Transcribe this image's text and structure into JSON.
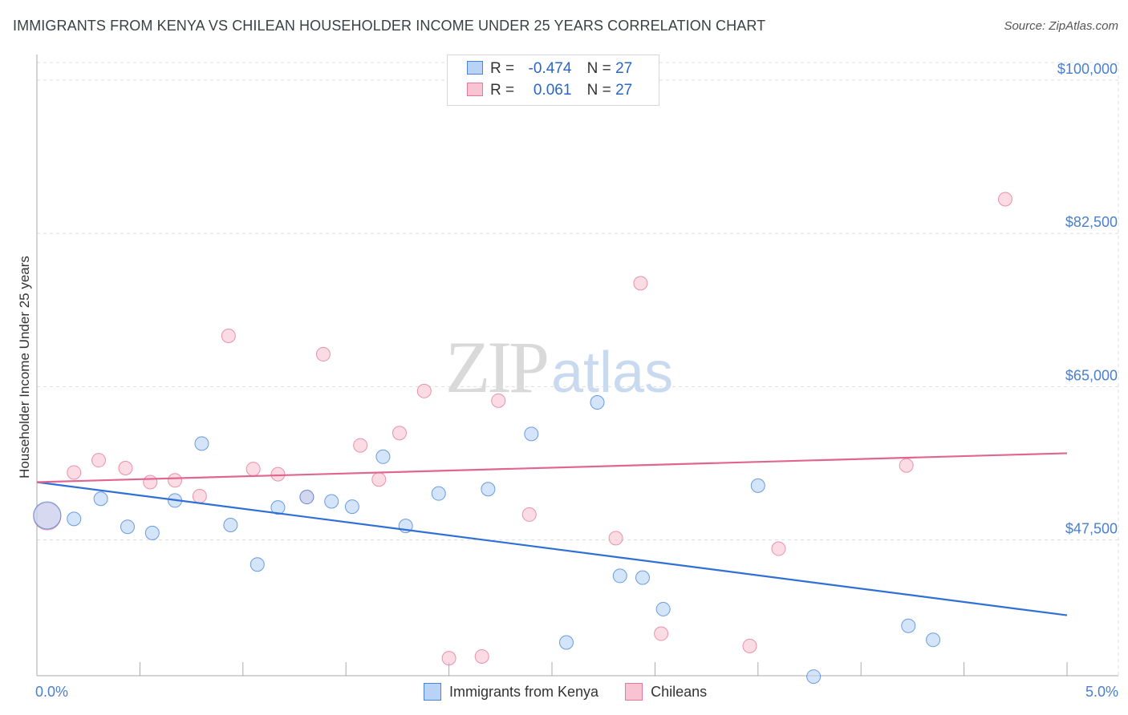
{
  "header": {
    "title": "IMMIGRANTS FROM KENYA VS CHILEAN HOUSEHOLDER INCOME UNDER 25 YEARS CORRELATION CHART",
    "source": "Source: ZipAtlas.com"
  },
  "watermark": {
    "zip": "ZIP",
    "atlas": "atlas"
  },
  "legend": {
    "rows": [
      {
        "r_label": "R =",
        "r_value": "-0.474",
        "n_label": "N =",
        "n_value": "27"
      },
      {
        "r_label": "R =",
        "r_value": "0.061",
        "n_label": "N =",
        "n_value": "27"
      }
    ]
  },
  "chart_data": {
    "type": "scatter",
    "title": "IMMIGRANTS FROM KENYA VS CHILEAN HOUSEHOLDER INCOME UNDER 25 YEARS CORRELATION CHART",
    "xlabel": "",
    "ylabel": "Householder Income Under 25 years",
    "xlim": [
      0,
      5
    ],
    "ylim": [
      32000,
      102000
    ],
    "x_tick_labels": [
      "0.0%",
      "5.0%"
    ],
    "y_ticks": [
      47500,
      65000,
      82500,
      100000
    ],
    "y_tick_labels": [
      "$47,500",
      "$65,000",
      "$82,500",
      "$100,000"
    ],
    "grid": true,
    "colors": {
      "kenya": "#4a86d8",
      "kenya_fill": "#b8d3f5",
      "chileans": "#e5799a",
      "chileans_fill": "#f8c4d3"
    },
    "series": [
      {
        "name": "Immigrants from Kenya",
        "r": -0.474,
        "n": 27,
        "trend": {
          "x": [
            0.0,
            5.0
          ],
          "y": [
            54100,
            38900
          ]
        },
        "points": [
          {
            "x": 0.05,
            "y": 50300,
            "big": true
          },
          {
            "x": 0.18,
            "y": 49900
          },
          {
            "x": 0.31,
            "y": 52200
          },
          {
            "x": 0.44,
            "y": 49000
          },
          {
            "x": 0.56,
            "y": 48300
          },
          {
            "x": 0.67,
            "y": 52000
          },
          {
            "x": 0.8,
            "y": 58500
          },
          {
            "x": 0.94,
            "y": 49200
          },
          {
            "x": 1.07,
            "y": 44700
          },
          {
            "x": 1.17,
            "y": 51200
          },
          {
            "x": 1.31,
            "y": 52400
          },
          {
            "x": 1.43,
            "y": 51900
          },
          {
            "x": 1.53,
            "y": 51300
          },
          {
            "x": 1.68,
            "y": 57000
          },
          {
            "x": 1.79,
            "y": 49100
          },
          {
            "x": 1.95,
            "y": 52800
          },
          {
            "x": 2.19,
            "y": 53300
          },
          {
            "x": 2.4,
            "y": 59600
          },
          {
            "x": 2.57,
            "y": 35800
          },
          {
            "x": 2.72,
            "y": 63200
          },
          {
            "x": 2.83,
            "y": 43400
          },
          {
            "x": 2.94,
            "y": 43200
          },
          {
            "x": 3.04,
            "y": 39600
          },
          {
            "x": 3.5,
            "y": 53700
          },
          {
            "x": 3.77,
            "y": 31900
          },
          {
            "x": 4.23,
            "y": 37700
          },
          {
            "x": 4.35,
            "y": 36100
          }
        ]
      },
      {
        "name": "Chileans",
        "r": 0.061,
        "n": 27,
        "trend": {
          "x": [
            0.0,
            5.0
          ],
          "y": [
            54100,
            57400
          ]
        },
        "points": [
          {
            "x": 0.05,
            "y": 50200,
            "big": true
          },
          {
            "x": 0.18,
            "y": 55200
          },
          {
            "x": 0.3,
            "y": 56600
          },
          {
            "x": 0.43,
            "y": 55700
          },
          {
            "x": 0.55,
            "y": 54100
          },
          {
            "x": 0.67,
            "y": 54300
          },
          {
            "x": 0.79,
            "y": 52500
          },
          {
            "x": 0.93,
            "y": 70800
          },
          {
            "x": 1.05,
            "y": 55600
          },
          {
            "x": 1.17,
            "y": 55000
          },
          {
            "x": 1.31,
            "y": 52400
          },
          {
            "x": 1.39,
            "y": 68700
          },
          {
            "x": 1.57,
            "y": 58300
          },
          {
            "x": 1.66,
            "y": 54400
          },
          {
            "x": 1.76,
            "y": 59700
          },
          {
            "x": 1.88,
            "y": 64500
          },
          {
            "x": 2.0,
            "y": 34000
          },
          {
            "x": 2.16,
            "y": 34200
          },
          {
            "x": 2.24,
            "y": 63400
          },
          {
            "x": 2.39,
            "y": 50400
          },
          {
            "x": 2.81,
            "y": 47700
          },
          {
            "x": 2.93,
            "y": 76800
          },
          {
            "x": 3.03,
            "y": 36800
          },
          {
            "x": 3.46,
            "y": 35400
          },
          {
            "x": 3.6,
            "y": 46500
          },
          {
            "x": 4.22,
            "y": 56000
          },
          {
            "x": 4.7,
            "y": 86400
          }
        ]
      }
    ]
  },
  "bottom_legend": {
    "items": [
      {
        "label": "Immigrants from Kenya"
      },
      {
        "label": "Chileans"
      }
    ]
  }
}
